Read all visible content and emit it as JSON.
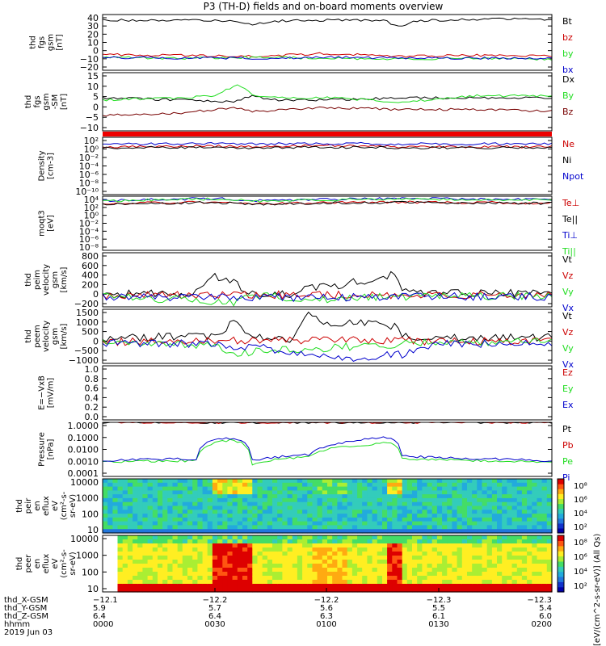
{
  "title": "P3 (TH-D) fields and on-board moments overview",
  "colors": {
    "black": "#000000",
    "red": "#cc0000",
    "green": "#22dd22",
    "blue": "#0000cc",
    "darkred": "#770000"
  },
  "panels": [
    {
      "ylabel": [
        "thd",
        "fgs",
        "gsm",
        "[nT]"
      ],
      "ticks": [
        "40",
        "30",
        "20",
        "10",
        "0",
        "−10",
        "−20"
      ],
      "legend": [
        "Bt",
        "bz",
        "by",
        "bx"
      ],
      "legend_colors": [
        "black",
        "red",
        "green",
        "blue"
      ]
    },
    {
      "ylabel": [
        "thd",
        "fgs",
        "gsm",
        "-SM",
        "[nT]"
      ],
      "ticks": [
        "15",
        "10",
        "5",
        "0",
        "−5",
        "−10"
      ],
      "legend": [
        "Dx",
        "By",
        "Bz"
      ],
      "legend_colors": [
        "black",
        "green",
        "darkred"
      ]
    },
    {
      "ylabel": [
        "Density",
        "[cm-3]"
      ],
      "ticks": [
        "10²",
        "10⁰",
        "10⁻²",
        "10⁻⁴",
        "10⁻⁶",
        "10⁻⁸",
        "10⁻¹⁰"
      ],
      "legend": [
        "Ne",
        "Ni",
        "Npot"
      ],
      "legend_colors": [
        "red",
        "black",
        "blue"
      ]
    },
    {
      "ylabel": [
        "moqt3",
        "[eV]"
      ],
      "ticks": [
        "10⁴",
        "10²",
        "10⁰",
        "10⁻²",
        "10⁻⁴",
        "10⁻⁶",
        "10⁻⁸"
      ],
      "legend": [
        "Te⊥",
        "Te||",
        "Ti⊥",
        "Ti||"
      ],
      "legend_colors": [
        "red",
        "black",
        "blue",
        "green"
      ]
    },
    {
      "ylabel": [
        "thd",
        "peim",
        "velocity",
        "gsm",
        "[km/s]"
      ],
      "ticks": [
        "800",
        "600",
        "400",
        "200",
        "0",
        "−200"
      ],
      "legend": [
        "Vt",
        "Vz",
        "Vy",
        "Vx"
      ],
      "legend_colors": [
        "black",
        "red",
        "green",
        "blue"
      ]
    },
    {
      "ylabel": [
        "thd",
        "peem",
        "velocity",
        "gsm",
        "[km/s]"
      ],
      "ticks": [
        "1500",
        "1000",
        "500",
        "0",
        "−500",
        "−1000"
      ],
      "legend": [
        "Vt",
        "Vz",
        "Vy",
        "Vx"
      ],
      "legend_colors": [
        "black",
        "red",
        "green",
        "blue"
      ]
    },
    {
      "ylabel": [
        "E=−VxB",
        "[mV/m]"
      ],
      "ticks": [
        "1.0",
        "0.8",
        "0.6",
        "0.4",
        "0.2",
        "0.0"
      ],
      "legend": [
        "Ez",
        "Ey",
        "Ex"
      ],
      "legend_colors": [
        "red",
        "green",
        "blue"
      ]
    },
    {
      "ylabel": [
        "Pressure",
        "[nPa]"
      ],
      "ticks": [
        "1.0000",
        "0.1000",
        "0.0100",
        "0.0010",
        "0.0001"
      ],
      "legend": [
        "Pt",
        "Pb",
        "Pe",
        "Pi"
      ],
      "legend_colors": [
        "black",
        "red",
        "green",
        "blue"
      ]
    },
    {
      "ylabel": [
        "thd",
        "peir",
        "en",
        "eflux",
        "eV",
        "(cm²-s-",
        "sr-eV)"
      ],
      "ticks": [
        "10000",
        "1000",
        "100",
        "10"
      ],
      "legend": [],
      "legend_colors": []
    },
    {
      "ylabel": [
        "thd",
        "peer",
        "en",
        "eflux",
        "eV",
        "(cm²-s-",
        "sr-eV)"
      ],
      "ticks": [
        "10000",
        "1000",
        "100",
        "10"
      ],
      "legend": [],
      "legend_colors": []
    }
  ],
  "colorbars": [
    {
      "ticks": [
        "10⁸",
        "10⁶",
        "10⁴",
        "10²"
      ]
    },
    {
      "ticks": [
        "10⁸",
        "10⁶",
        "10⁴",
        "10²"
      ]
    }
  ],
  "colorbar_label": "[eV/(cm^2-s-sr-eV)] (All Qs)",
  "xaxis": {
    "row_labels": [
      "thd_X-GSM",
      "thd_Y-GSM",
      "thd_Z-GSM",
      "hhmm",
      "2019 Jun 03"
    ],
    "columns": [
      [
        "−12.1",
        "5.9",
        "6.4",
        "0000"
      ],
      [
        "−12.2",
        "5.7",
        "6.4",
        "0030"
      ],
      [
        "−12.2",
        "5.6",
        "6.3",
        "0100"
      ],
      [
        "−12.3",
        "5.5",
        "6.1",
        "0130"
      ],
      [
        "−12.3",
        "5.4",
        "6.0",
        "0200"
      ]
    ]
  },
  "chart_data": {
    "type": "line",
    "title": "P3 (TH-D) fields and on-board moments overview",
    "x_axis": {
      "label": "hhmm",
      "date": "2019 Jun 03",
      "ticks": [
        "0000",
        "0030",
        "0100",
        "0130",
        "0200"
      ],
      "range": [
        "00:00",
        "02:00"
      ]
    },
    "panels": [
      {
        "name": "thd fgs gsm",
        "unit": "nT",
        "ylim": [
          -20,
          40
        ],
        "series": [
          {
            "name": "Bt",
            "color": "black",
            "x": [
              0,
              20,
              35,
              40,
              45,
              60,
              75,
              79,
              83,
              100,
              120
            ],
            "y": [
              34,
              34,
              33,
              29,
              33,
              34,
              34,
              27,
              33,
              35,
              35
            ]
          },
          {
            "name": "bz",
            "color": "red",
            "x": [
              0,
              20,
              40,
              60,
              80,
              100,
              120
            ],
            "y": [
              -3,
              -4,
              -5,
              -2,
              -5,
              -4,
              -5
            ]
          },
          {
            "name": "by",
            "color": "green",
            "x": [
              0,
              20,
              40,
              60,
              80,
              100,
              120
            ],
            "y": [
              -6,
              -7,
              -6,
              -7,
              -8,
              -7,
              -8
            ]
          },
          {
            "name": "bx",
            "color": "blue",
            "x": [
              0,
              20,
              40,
              60,
              80,
              100,
              120
            ],
            "y": [
              -6,
              -7,
              -7,
              -6,
              -7,
              -7,
              -7
            ]
          }
        ]
      },
      {
        "name": "thd fgs gsm-SM",
        "unit": "nT",
        "ylim": [
          -15,
          15
        ],
        "series": [
          {
            "name": "Dx",
            "color": "black",
            "x": [
              0,
              20,
              35,
              40,
              45,
              60,
              80,
              100,
              120
            ],
            "y": [
              2,
              1,
              0,
              3,
              1,
              1,
              2,
              2,
              2
            ]
          },
          {
            "name": "By",
            "color": "green",
            "x": [
              0,
              20,
              30,
              36,
              40,
              45,
              60,
              80,
              100,
              120
            ],
            "y": [
              1,
              2,
              3,
              9,
              4,
              2,
              2,
              0,
              3,
              3
            ]
          },
          {
            "name": "Bz",
            "color": "darkred",
            "x": [
              0,
              20,
              35,
              40,
              60,
              80,
              100,
              120
            ],
            "y": [
              -7,
              -6,
              -3,
              -5,
              -3,
              -4,
              -4,
              -5
            ]
          }
        ]
      },
      {
        "name": "Density",
        "unit": "cm-3",
        "scale": "log",
        "ylim": [
          1e-10,
          100
        ],
        "series": [
          {
            "name": "Ne",
            "color": "red",
            "x": [
              0,
              30,
              40,
              60,
              80,
              120
            ],
            "y": [
              1,
              1.5,
              1,
              2,
              1,
              1
            ]
          },
          {
            "name": "Ni",
            "color": "black",
            "x": [
              0,
              30,
              40,
              60,
              80,
              120
            ],
            "y": [
              0.6,
              0.8,
              0.5,
              0.9,
              0.6,
              0.7
            ]
          },
          {
            "name": "Npot",
            "color": "blue",
            "x": [
              0,
              30,
              40,
              60,
              80,
              120
            ],
            "y": [
              4,
              5,
              4,
              5,
              4,
              4
            ]
          }
        ]
      },
      {
        "name": "moqt3",
        "unit": "eV",
        "scale": "log",
        "ylim": [
          1e-08,
          10000
        ],
        "series": [
          {
            "name": "Te⊥",
            "color": "red",
            "x": [
              0,
              30,
              40,
              60,
              80,
              120
            ],
            "y": [
              200,
              500,
              200,
              400,
              500,
              300
            ]
          },
          {
            "name": "Te||",
            "color": "black",
            "x": [
              0,
              30,
              40,
              60,
              80,
              120
            ],
            "y": [
              150,
              400,
              150,
              300,
              400,
              250
            ]
          },
          {
            "name": "Ti⊥",
            "color": "blue",
            "x": [
              0,
              30,
              40,
              60,
              80,
              120
            ],
            "y": [
              1000,
              3000,
              1000,
              2000,
              3000,
              1500
            ]
          },
          {
            "name": "Ti||",
            "color": "green",
            "x": [
              0,
              30,
              40,
              60,
              80,
              120
            ],
            "y": [
              800,
              2500,
              800,
              1500,
              2500,
              1200
            ]
          }
        ]
      },
      {
        "name": "thd peim velocity gsm",
        "unit": "km/s",
        "ylim": [
          -200,
          800
        ],
        "series": [
          {
            "name": "Vt",
            "color": "black",
            "x": [
              0,
              25,
              30,
              35,
              40,
              50,
              55,
              60,
              78,
              80,
              90,
              100,
              120
            ],
            "y": [
              30,
              60,
              350,
              250,
              40,
              30,
              200,
              150,
              400,
              100,
              60,
              40,
              60
            ]
          },
          {
            "name": "Vz",
            "color": "red",
            "x": [
              0,
              30,
              60,
              90,
              120
            ],
            "y": [
              10,
              30,
              20,
              15,
              20
            ]
          },
          {
            "name": "Vy",
            "color": "green",
            "x": [
              0,
              30,
              35,
              40,
              60,
              90,
              120
            ],
            "y": [
              0,
              -100,
              -150,
              0,
              -50,
              0,
              0
            ]
          },
          {
            "name": "Vx",
            "color": "blue",
            "x": [
              0,
              30,
              60,
              90,
              120
            ],
            "y": [
              -10,
              -20,
              -30,
              -10,
              -10
            ]
          }
        ]
      },
      {
        "name": "thd peem velocity gsm",
        "unit": "km/s",
        "ylim": [
          -1000,
          1500
        ],
        "series": [
          {
            "name": "Vt",
            "color": "black",
            "x": [
              0,
              30,
              35,
              40,
              50,
              55,
              60,
              65,
              78,
              80,
              90,
              100,
              120
            ],
            "y": [
              150,
              300,
              900,
              200,
              150,
              1200,
              800,
              900,
              700,
              200,
              300,
              150,
              200
            ]
          },
          {
            "name": "Vz",
            "color": "red",
            "x": [
              0,
              30,
              60,
              90,
              120
            ],
            "y": [
              0,
              50,
              100,
              20,
              0
            ]
          },
          {
            "name": "Vy",
            "color": "green",
            "x": [
              0,
              30,
              35,
              60,
              90,
              120
            ],
            "y": [
              0,
              -200,
              -500,
              -300,
              0,
              0
            ]
          },
          {
            "name": "Vx",
            "color": "blue",
            "x": [
              0,
              30,
              55,
              60,
              80,
              90,
              120
            ],
            "y": [
              -50,
              -100,
              -500,
              -800,
              -600,
              -100,
              -50
            ]
          }
        ]
      },
      {
        "name": "E=-VxB",
        "unit": "mV/m",
        "ylim": [
          0,
          1
        ],
        "series": []
      },
      {
        "name": "Pressure",
        "unit": "nPa",
        "scale": "log",
        "ylim": [
          0.0001,
          1
        ],
        "series": [
          {
            "name": "Pt",
            "color": "black",
            "x": [
              0,
              30,
              60,
              90,
              120
            ],
            "y": [
              1,
              1,
              1,
              1,
              1
            ]
          },
          {
            "name": "Pb",
            "color": "red",
            "x": [
              0,
              30,
              60,
              90,
              120
            ],
            "y": [
              1,
              1,
              1,
              1,
              1
            ]
          },
          {
            "name": "Pe",
            "color": "green",
            "x": [
              0,
              25,
              30,
              35,
              40,
              55,
              60,
              77,
              80,
              100,
              120
            ],
            "y": [
              0.0012,
              0.0015,
              0.03,
              0.05,
              0.0008,
              0.003,
              0.01,
              0.03,
              0.002,
              0.0015,
              0.0012
            ]
          },
          {
            "name": "Pi",
            "color": "blue",
            "x": [
              0,
              25,
              30,
              35,
              40,
              55,
              60,
              77,
              80,
              100,
              120
            ],
            "y": [
              0.0015,
              0.002,
              0.06,
              0.07,
              0.0015,
              0.004,
              0.015,
              0.08,
              0.003,
              0.002,
              0.0015
            ]
          }
        ]
      }
    ],
    "spectrograms": [
      {
        "name": "thd peir en eflux",
        "unit": "eV/(cm2-s-sr-eV)",
        "ylim": [
          10,
          10000
        ],
        "scale": "log",
        "clim": [
          100.0,
          100000000.0
        ]
      },
      {
        "name": "thd peer en eflux",
        "unit": "eV/(cm2-s-sr-eV)",
        "ylim": [
          10,
          10000
        ],
        "scale": "log",
        "clim": [
          100.0,
          100000000.0
        ]
      }
    ]
  }
}
